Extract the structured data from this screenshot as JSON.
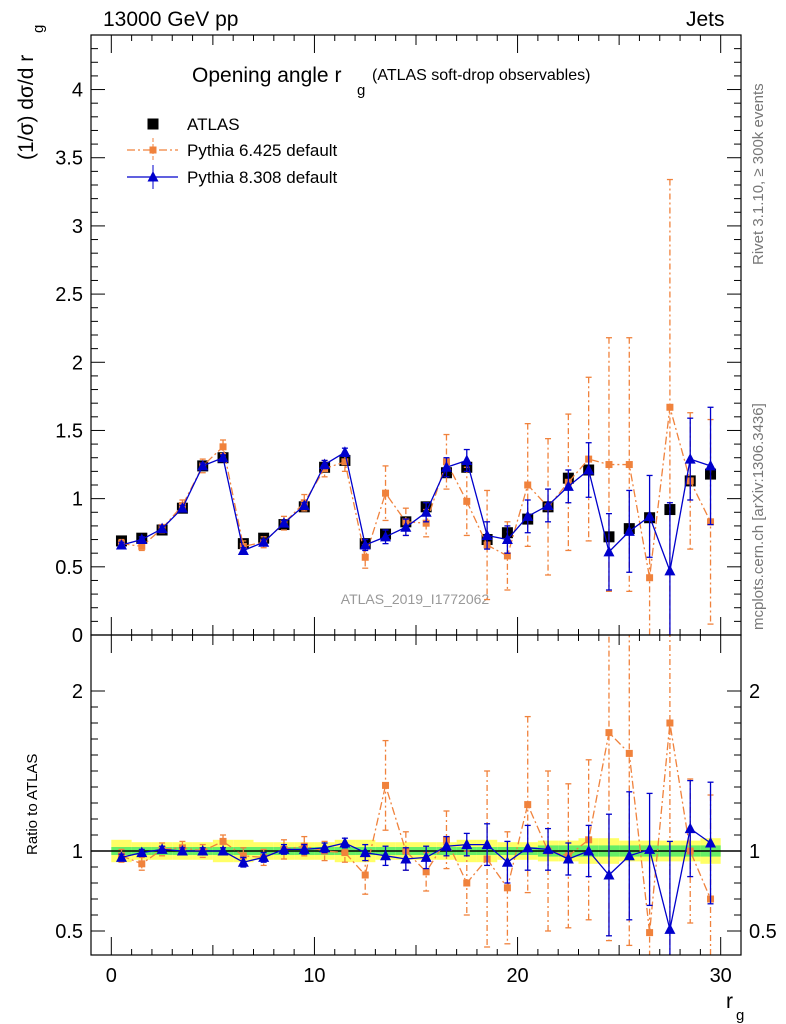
{
  "header": {
    "left": "13000 GeV pp",
    "right": "Jets"
  },
  "side_labels": {
    "rivet": "Rivet 3.1.10, ≥ 300k events",
    "mcplots": "mcplots.cern.ch [arXiv:1306.3436]"
  },
  "chart_data": [
    {
      "type": "scatter",
      "title_main": "Opening angle r",
      "title_sub": "g",
      "title_extra": "(ATLAS soft-drop observables)",
      "ylabel": "(1/σ) dσ/d r",
      "ylabel_sub": "g",
      "watermark": "ATLAS_2019_I1772062",
      "xlim": [
        -1,
        31
      ],
      "ylim": [
        0,
        4.4
      ],
      "yticks": [
        0,
        0.5,
        1,
        1.5,
        2,
        2.5,
        3,
        3.5,
        4
      ],
      "ytick_labels": [
        "0",
        "0.5",
        "1",
        "1.5",
        "2",
        "2.5",
        "3",
        "3.5",
        "4"
      ],
      "legend_position": "top-left",
      "x": [
        0.5,
        1.5,
        2.5,
        3.5,
        4.5,
        5.5,
        6.5,
        7.5,
        8.5,
        9.5,
        10.5,
        11.5,
        12.5,
        13.5,
        14.5,
        15.5,
        16.5,
        17.5,
        18.5,
        19.5,
        20.5,
        21.5,
        22.5,
        23.5,
        24.5,
        25.5,
        26.5,
        27.5,
        28.5,
        29.5
      ],
      "series": [
        {
          "name": "ATLAS",
          "color": "#000000",
          "marker": "square",
          "values": [
            0.69,
            0.71,
            0.77,
            0.93,
            1.24,
            1.3,
            0.67,
            0.71,
            0.81,
            0.94,
            1.23,
            1.28,
            0.67,
            0.74,
            0.83,
            0.94,
            1.19,
            1.23,
            0.7,
            0.75,
            0.85,
            0.94,
            1.15,
            1.21,
            0.72,
            0.78,
            0.86,
            0.92,
            1.13,
            1.18
          ]
        },
        {
          "name": "Pythia 6.425 default",
          "color": "#f0823c",
          "marker": "square-small",
          "line": "dash-dot",
          "values": [
            0.67,
            0.65,
            0.78,
            0.95,
            1.24,
            1.38,
            0.65,
            0.68,
            0.82,
            0.97,
            1.22,
            1.27,
            0.57,
            1.04,
            0.83,
            0.82,
            1.27,
            0.98,
            0.66,
            0.58,
            1.1,
            0.94,
            1.12,
            1.29,
            1.25,
            1.25,
            0.42,
            1.67,
            1.13,
            0.83
          ],
          "errors": [
            0.03,
            0.03,
            0.03,
            0.04,
            0.05,
            0.05,
            0.04,
            0.04,
            0.05,
            0.06,
            0.06,
            0.07,
            0.08,
            0.2,
            0.1,
            0.1,
            0.2,
            0.25,
            0.4,
            0.25,
            0.45,
            0.5,
            0.5,
            0.6,
            0.93,
            0.93,
            0.45,
            1.67,
            0.5,
            0.75
          ]
        },
        {
          "name": "Pythia 8.308 default",
          "color": "#0000cc",
          "marker": "triangle",
          "line": "solid",
          "values": [
            0.66,
            0.7,
            0.78,
            0.93,
            1.24,
            1.3,
            0.62,
            0.68,
            0.82,
            0.95,
            1.25,
            1.34,
            0.66,
            0.72,
            0.79,
            0.9,
            1.23,
            1.28,
            0.73,
            0.7,
            0.87,
            0.95,
            1.09,
            1.21,
            0.61,
            0.76,
            0.87,
            0.47,
            1.29,
            1.24
          ],
          "errors": [
            0.02,
            0.02,
            0.02,
            0.02,
            0.02,
            0.02,
            0.02,
            0.02,
            0.02,
            0.02,
            0.03,
            0.03,
            0.04,
            0.05,
            0.06,
            0.07,
            0.07,
            0.08,
            0.1,
            0.1,
            0.12,
            0.12,
            0.12,
            0.2,
            0.28,
            0.3,
            0.3,
            0.5,
            0.3,
            0.43
          ]
        }
      ]
    },
    {
      "type": "scatter",
      "ylabel": "Ratio to ATLAS",
      "xlabel": "r",
      "xlabel_sub": "g",
      "xlim": [
        -1,
        31
      ],
      "xticks": [
        0,
        10,
        20,
        30
      ],
      "xtick_labels": [
        "0",
        "10",
        "20",
        "30"
      ],
      "ylim": [
        0.35,
        2.35
      ],
      "yticks": [
        0.5,
        1,
        2
      ],
      "ytick_labels": [
        "0.5",
        "1",
        "2"
      ],
      "reference_band_colors": [
        "#ffff66",
        "#66ee66"
      ],
      "x": [
        0.5,
        1.5,
        2.5,
        3.5,
        4.5,
        5.5,
        6.5,
        7.5,
        8.5,
        9.5,
        10.5,
        11.5,
        12.5,
        13.5,
        14.5,
        15.5,
        16.5,
        17.5,
        18.5,
        19.5,
        20.5,
        21.5,
        22.5,
        23.5,
        24.5,
        25.5,
        26.5,
        27.5,
        28.5,
        29.5
      ],
      "series": [
        {
          "name": "Pythia 6.425 default",
          "color": "#f0823c",
          "values": [
            0.97,
            0.92,
            1.01,
            1.02,
            1.0,
            1.06,
            0.97,
            0.96,
            1.01,
            1.03,
            1.0,
            0.99,
            0.85,
            1.41,
            1.0,
            0.87,
            1.07,
            0.8,
            0.95,
            0.77,
            1.29,
            1.0,
            0.97,
            1.07,
            1.74,
            1.61,
            0.49,
            1.8,
            1.0,
            0.7
          ],
          "errors": [
            0.04,
            0.04,
            0.04,
            0.04,
            0.04,
            0.04,
            0.05,
            0.05,
            0.06,
            0.06,
            0.06,
            0.06,
            0.12,
            0.28,
            0.12,
            0.12,
            0.18,
            0.2,
            0.55,
            0.35,
            0.55,
            0.5,
            0.45,
            0.5,
            1.3,
            1.2,
            0.5,
            1.8,
            0.45,
            0.65
          ]
        },
        {
          "name": "Pythia 8.308 default",
          "color": "#0000cc",
          "values": [
            0.96,
            0.99,
            1.01,
            1.0,
            1.0,
            1.0,
            0.93,
            0.96,
            1.01,
            1.01,
            1.02,
            1.05,
            0.99,
            0.97,
            0.95,
            0.96,
            1.03,
            1.04,
            1.04,
            0.93,
            1.02,
            1.01,
            0.95,
            1.0,
            0.85,
            0.97,
            1.01,
            0.51,
            1.14,
            1.05
          ],
          "errors": [
            0.02,
            0.02,
            0.02,
            0.02,
            0.02,
            0.02,
            0.03,
            0.03,
            0.03,
            0.03,
            0.03,
            0.03,
            0.05,
            0.06,
            0.07,
            0.07,
            0.06,
            0.07,
            0.13,
            0.13,
            0.14,
            0.13,
            0.1,
            0.16,
            0.38,
            0.4,
            0.35,
            0.55,
            0.3,
            0.38
          ]
        }
      ]
    }
  ]
}
